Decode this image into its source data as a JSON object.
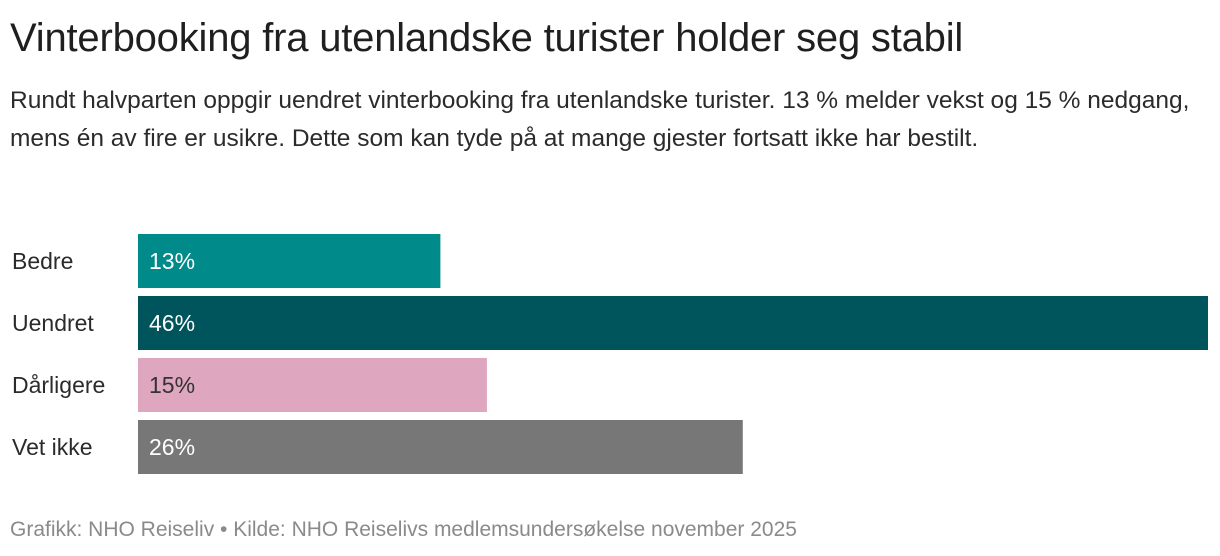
{
  "title": "Vinterbooking fra utenlandske turister holder seg stabil",
  "subtitle": "Rundt halvparten oppgir uendret vinterbooking fra utenlandske turister. 13 % melder vekst og 15 % nedgang, mens én av fire er usikre.  Dette som kan tyde på at mange gjester fortsatt ikke har bestilt.",
  "source": "Grafikk: NHO Reiseliv • Kilde: NHO Reiselivs medlemsundersøkelse november 2025",
  "chart_data": {
    "type": "bar",
    "orientation": "horizontal",
    "categories": [
      "Bedre",
      "Uendret",
      "Dårligere",
      "Vet ikke"
    ],
    "values": [
      13,
      46,
      15,
      26
    ],
    "value_labels": [
      "13%",
      "46%",
      "15%",
      "26%"
    ],
    "colors": [
      "#008a8a",
      "#00555c",
      "#dfa6bf",
      "#777777"
    ],
    "label_colors": [
      "#ffffff",
      "#ffffff",
      "#333333",
      "#ffffff"
    ],
    "xlim": [
      0,
      46
    ],
    "grid": false,
    "legend": "none"
  }
}
